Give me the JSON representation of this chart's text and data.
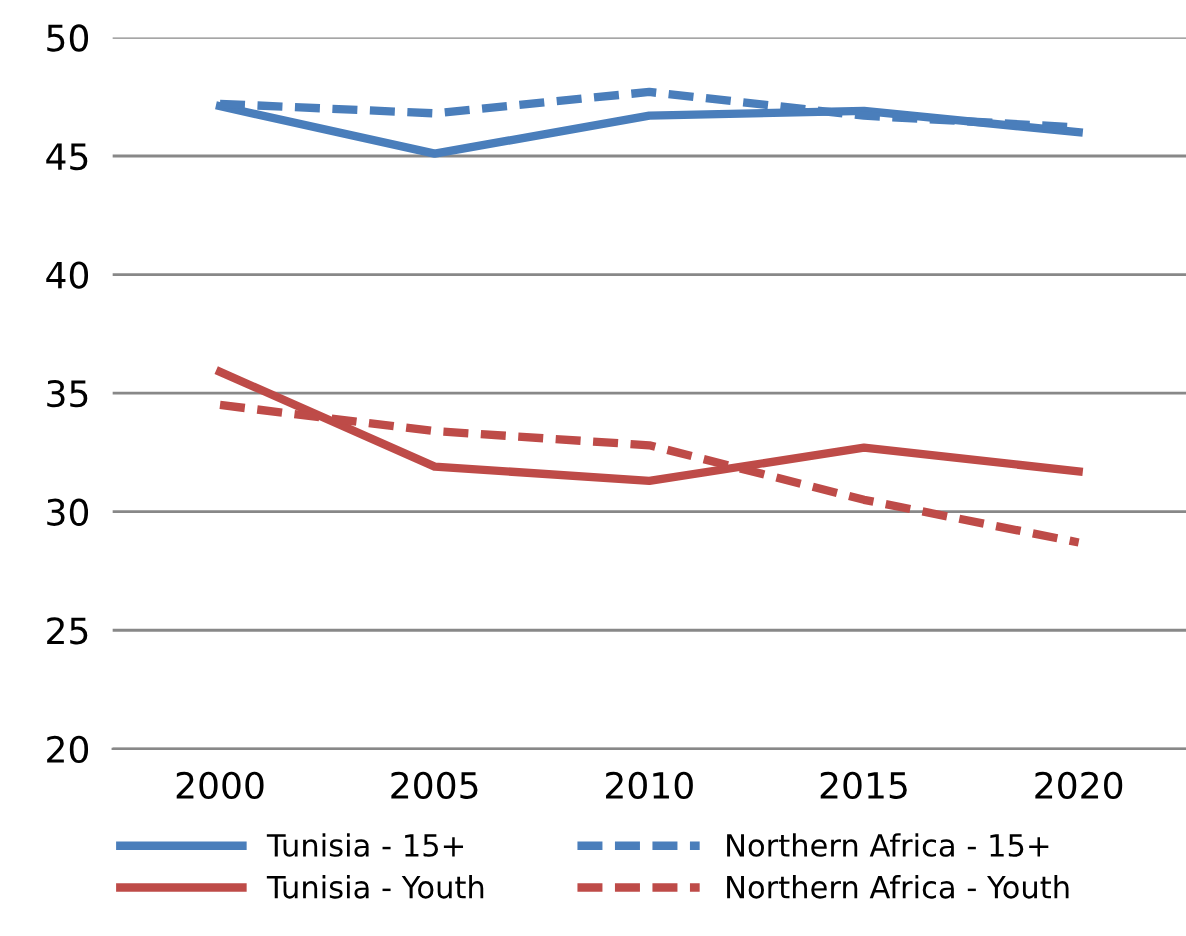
{
  "chart_data": {
    "type": "line",
    "categories": [
      "2000",
      "2005",
      "2010",
      "2015",
      "2020"
    ],
    "series": [
      {
        "name": "Tunisia - 15+",
        "color": "#4a7ebb",
        "line_style": "solid",
        "values": [
          47.1,
          45.1,
          46.7,
          46.9,
          46.0
        ]
      },
      {
        "name": "Northern Africa - 15+",
        "color": "#4a7ebb",
        "line_style": "dashed",
        "values": [
          47.2,
          46.8,
          47.7,
          46.7,
          46.2
        ]
      },
      {
        "name": "Tunisia - Youth",
        "color": "#be4b48",
        "line_style": "solid",
        "values": [
          35.9,
          31.9,
          31.3,
          32.7,
          31.7
        ]
      },
      {
        "name": "Northern Africa - Youth",
        "color": "#be4b48",
        "line_style": "dashed",
        "values": [
          34.5,
          33.4,
          32.8,
          30.5,
          28.7
        ]
      }
    ],
    "ylim": [
      20,
      50
    ],
    "yticks": [
      20,
      25,
      30,
      35,
      40,
      45,
      50
    ],
    "grid": "y",
    "legend": "bottom",
    "marker": "none"
  }
}
